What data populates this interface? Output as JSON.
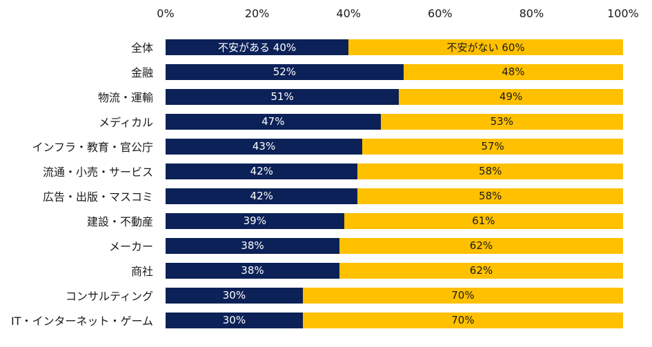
{
  "chart_data": {
    "type": "bar",
    "orientation": "horizontal",
    "stacked": true,
    "percent": true,
    "xlim": [
      0,
      100
    ],
    "x_ticks": [
      "0%",
      "20%",
      "40%",
      "60%",
      "80%",
      "100%"
    ],
    "categories": [
      "全体",
      "金融",
      "物流・運輸",
      "メディカル",
      "インフラ・教育・官公庁",
      "流通・小売・サービス",
      "広告・出版・マスコミ",
      "建設・不動産",
      "メーカー",
      "商社",
      "コンサルティング",
      "IT・インターネット・ゲーム"
    ],
    "series": [
      {
        "name": "不安がある",
        "color": "#0c2157",
        "values": [
          40,
          52,
          51,
          47,
          43,
          42,
          42,
          39,
          38,
          38,
          30,
          30
        ],
        "labels": [
          "不安がある 40%",
          "52%",
          "51%",
          "47%",
          "43%",
          "42%",
          "42%",
          "39%",
          "38%",
          "38%",
          "30%",
          "30%"
        ]
      },
      {
        "name": "不安がない",
        "color": "#ffc000",
        "values": [
          60,
          48,
          49,
          53,
          57,
          58,
          58,
          61,
          62,
          62,
          70,
          70
        ],
        "labels": [
          "不安がない 60%",
          "48%",
          "49%",
          "53%",
          "57%",
          "58%",
          "58%",
          "61%",
          "62%",
          "62%",
          "70%",
          "70%"
        ]
      }
    ],
    "legend": "none",
    "grid": false
  }
}
